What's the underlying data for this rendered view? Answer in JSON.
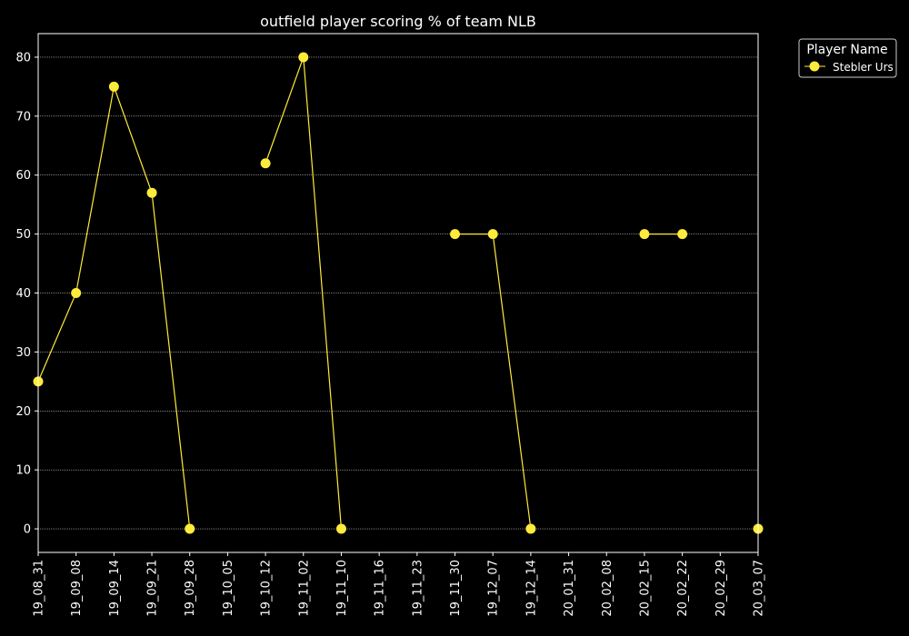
{
  "chart_data": {
    "type": "line",
    "title": "outfield player scoring % of team NLB",
    "xlabel": "",
    "ylabel": "",
    "categories": [
      "19_08_31",
      "19_09_08",
      "19_09_14",
      "19_09_21",
      "19_09_28",
      "19_10_05",
      "19_10_12",
      "19_11_02",
      "19_11_10",
      "19_11_16",
      "19_11_23",
      "19_11_30",
      "19_12_07",
      "19_12_14",
      "20_01_31",
      "20_02_08",
      "20_02_15",
      "20_02_22",
      "20_02_29",
      "20_03_07"
    ],
    "ylim": [
      -4,
      84
    ],
    "yticks": [
      0,
      10,
      20,
      30,
      40,
      50,
      60,
      70,
      80
    ],
    "grid": true,
    "legend": {
      "title": "Player Name",
      "placement": "outside-top-right"
    },
    "series": [
      {
        "name": "Stebler Urs",
        "color": "#ffeb3b",
        "values": [
          25,
          40,
          75,
          57,
          0,
          null,
          62,
          80,
          0,
          null,
          null,
          50,
          50,
          0,
          null,
          null,
          50,
          50,
          null,
          0
        ]
      }
    ]
  }
}
